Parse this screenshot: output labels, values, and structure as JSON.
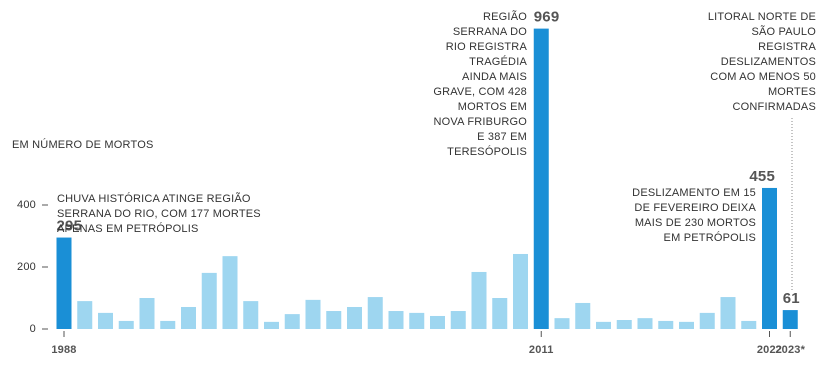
{
  "chart_data": {
    "type": "bar",
    "y_label": "EM NÚMERO DE MORTOS",
    "categories": [
      "1988",
      null,
      null,
      null,
      null,
      null,
      null,
      null,
      null,
      null,
      null,
      null,
      null,
      null,
      null,
      null,
      null,
      null,
      null,
      null,
      null,
      null,
      null,
      "2011",
      null,
      null,
      null,
      null,
      null,
      null,
      null,
      null,
      null,
      null,
      "2022",
      "2023*"
    ],
    "values": [
      295,
      90,
      52,
      26,
      100,
      26,
      71,
      181,
      235,
      90,
      23,
      48,
      94,
      58,
      71,
      103,
      58,
      52,
      42,
      58,
      184,
      100,
      242,
      969,
      35,
      84,
      23,
      29,
      35,
      26,
      23,
      52,
      103,
      26,
      455,
      61
    ],
    "value_labels": [
      "295",
      null,
      null,
      null,
      null,
      null,
      null,
      null,
      null,
      null,
      null,
      null,
      null,
      null,
      null,
      null,
      null,
      null,
      null,
      null,
      null,
      null,
      null,
      "969",
      null,
      null,
      null,
      null,
      null,
      null,
      null,
      null,
      null,
      null,
      "455",
      "61"
    ],
    "colors": [
      "#1a8fd6",
      "#9ed6f0",
      "#9ed6f0",
      "#9ed6f0",
      "#9ed6f0",
      "#9ed6f0",
      "#9ed6f0",
      "#9ed6f0",
      "#9ed6f0",
      "#9ed6f0",
      "#9ed6f0",
      "#9ed6f0",
      "#9ed6f0",
      "#9ed6f0",
      "#9ed6f0",
      "#9ed6f0",
      "#9ed6f0",
      "#9ed6f0",
      "#9ed6f0",
      "#9ed6f0",
      "#9ed6f0",
      "#9ed6f0",
      "#9ed6f0",
      "#1a8fd6",
      "#9ed6f0",
      "#9ed6f0",
      "#9ed6f0",
      "#9ed6f0",
      "#9ed6f0",
      "#9ed6f0",
      "#9ed6f0",
      "#9ed6f0",
      "#9ed6f0",
      "#9ed6f0",
      "#1a8fd6",
      "#1a8fd6"
    ],
    "ylim": [
      0,
      1000
    ],
    "yticks": [
      0,
      200,
      400
    ],
    "annotations": [
      {
        "lines": [
          "CHUVA HISTÓRICA ATINGE REGIÃO",
          "SERRANA DO RIO, COM 177 MORTES",
          "APENAS EM PETRÓPOLIS"
        ]
      },
      {
        "lines": [
          "REGIÃO",
          "SERRANA DO",
          "RIO REGISTRA",
          "TRAGÉDIA",
          "AINDA MAIS",
          "GRAVE, COM 428",
          "MORTOS EM",
          "NOVA FRIBURGO",
          "E 387 EM",
          "TERESÓPOLIS"
        ]
      },
      {
        "lines": [
          "DESLIZAMENTO EM 15",
          "DE FEVEREIRO DEIXA",
          "MAIS DE 230 MORTOS",
          "EM PETRÓPOLIS"
        ]
      },
      {
        "lines": [
          "LITORAL NORTE DE",
          "SÃO PAULO",
          "REGISTRA",
          "DESLIZAMENTOS",
          "COM AO MENOS 50",
          "MORTES",
          "CONFIRMADAS"
        ]
      }
    ]
  }
}
